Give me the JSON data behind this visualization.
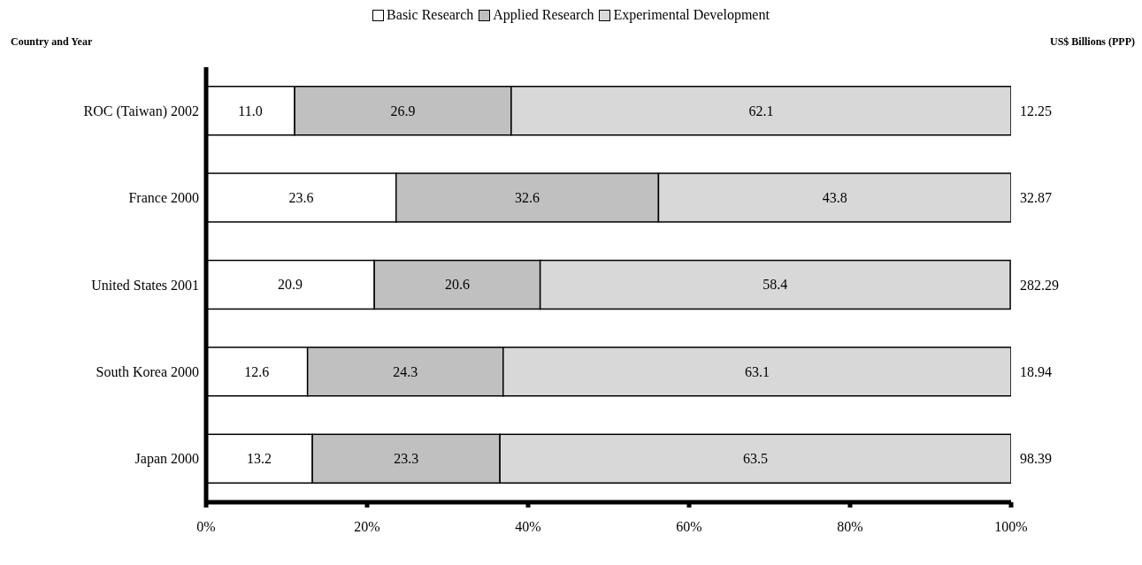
{
  "chart_data": {
    "type": "bar",
    "orientation": "horizontal",
    "stacked": true,
    "ylabel": "Country and Year",
    "y2label": "US$ Billions (PPP)",
    "categories": [
      "ROC (Taiwan) 2002",
      "France 2000",
      "United States 2001",
      "South Korea 2000",
      "Japan 2000"
    ],
    "series": [
      {
        "name": "Basic Research",
        "color": "#ffffff",
        "values": [
          11.0,
          23.6,
          20.9,
          12.6,
          13.2
        ],
        "value_labels": [
          "11.0",
          "23.6",
          "20.9",
          "12.6",
          "13.2"
        ]
      },
      {
        "name": "Applied Research",
        "color": "#c0c0c0",
        "values": [
          26.9,
          32.6,
          20.6,
          24.3,
          23.3
        ],
        "value_labels": [
          "26.9",
          "32.6",
          "20.6",
          "24.3",
          "23.3"
        ]
      },
      {
        "name": "Experimental Development",
        "color": "#d8d8d8",
        "values": [
          62.1,
          43.8,
          58.4,
          63.1,
          63.5
        ],
        "value_labels": [
          "62.1",
          "43.8",
          "58.4",
          "63.1",
          "63.5"
        ]
      }
    ],
    "annotations": [
      "12.25",
      "32.87",
      "282.29",
      "18.94",
      "98.39"
    ],
    "xlim": [
      0,
      100
    ],
    "xticks": [
      {
        "value": 0,
        "label": "0%"
      },
      {
        "value": 20,
        "label": "20%"
      },
      {
        "value": 40,
        "label": "40%"
      },
      {
        "value": 60,
        "label": "60%"
      },
      {
        "value": 80,
        "label": "80%"
      },
      {
        "value": 100,
        "label": "100%"
      }
    ],
    "legend": "top"
  }
}
